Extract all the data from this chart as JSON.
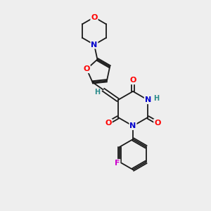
{
  "bg_color": "#eeeeee",
  "bond_color": "#1a1a1a",
  "atom_colors": {
    "O": "#ff0000",
    "N": "#0000cc",
    "F": "#cc00cc",
    "H": "#2a8a8a"
  },
  "font_size": 7.5,
  "bond_width": 1.3,
  "figsize": [
    3.0,
    3.0
  ],
  "dpi": 100
}
